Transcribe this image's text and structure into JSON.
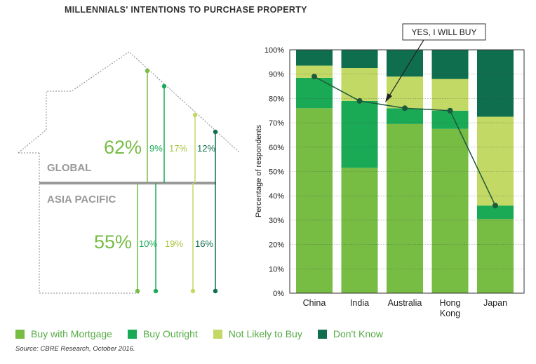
{
  "title": "MILLENNIALS' INTENTIONS TO PURCHASE PROPERTY",
  "colors": {
    "mortgage": "#77bc43",
    "outright": "#1aaa55",
    "not_likely": "#c3d965",
    "dont_know": "#0f6e4e",
    "region_label": "#999999",
    "line": "#1d5a3c"
  },
  "house": {
    "global_label": "GLOBAL",
    "asia_label": "ASIA PACIFIC",
    "global": {
      "mortgage": "62%",
      "outright": "9%",
      "not_likely": "17%",
      "dont_know": "12%"
    },
    "asia": {
      "mortgage": "55%",
      "outright": "10%",
      "not_likely": "19%",
      "dont_know": "16%"
    }
  },
  "callout": "YES, I WILL BUY",
  "legend": [
    {
      "label": "Buy with Mortgage",
      "color": "#77bc43"
    },
    {
      "label": "Buy Outright",
      "color": "#1aaa55"
    },
    {
      "label": "Not Likely to Buy",
      "color": "#c3d965"
    },
    {
      "label": "Don't Know",
      "color": "#0f6e4e"
    }
  ],
  "source": "Source: CBRE Research, October 2016.",
  "chart_data": {
    "type": "bar",
    "stacked": true,
    "categories": [
      "China",
      "India",
      "Australia",
      "Hong Kong",
      "Japan"
    ],
    "series": [
      {
        "name": "Buy with Mortgage",
        "values": [
          76,
          51.5,
          69.5,
          67.5,
          30.5
        ]
      },
      {
        "name": "Buy Outright",
        "values": [
          12.5,
          27.5,
          6.5,
          7.5,
          5.5
        ]
      },
      {
        "name": "Not Likely to Buy",
        "values": [
          5,
          13.5,
          13,
          13,
          36.5
        ]
      },
      {
        "name": "Don't Know",
        "values": [
          6.5,
          7.5,
          11,
          12,
          27.5
        ]
      }
    ],
    "line": {
      "name": "YES, I WILL BUY",
      "values": [
        89,
        79,
        76,
        75,
        36
      ]
    },
    "ylabel": "Percentage of respondents",
    "ylim": [
      0,
      100
    ],
    "yticks": [
      "0%",
      "10%",
      "20%",
      "30%",
      "40%",
      "50%",
      "60%",
      "70%",
      "80%",
      "90%",
      "100%"
    ],
    "grid": true
  }
}
